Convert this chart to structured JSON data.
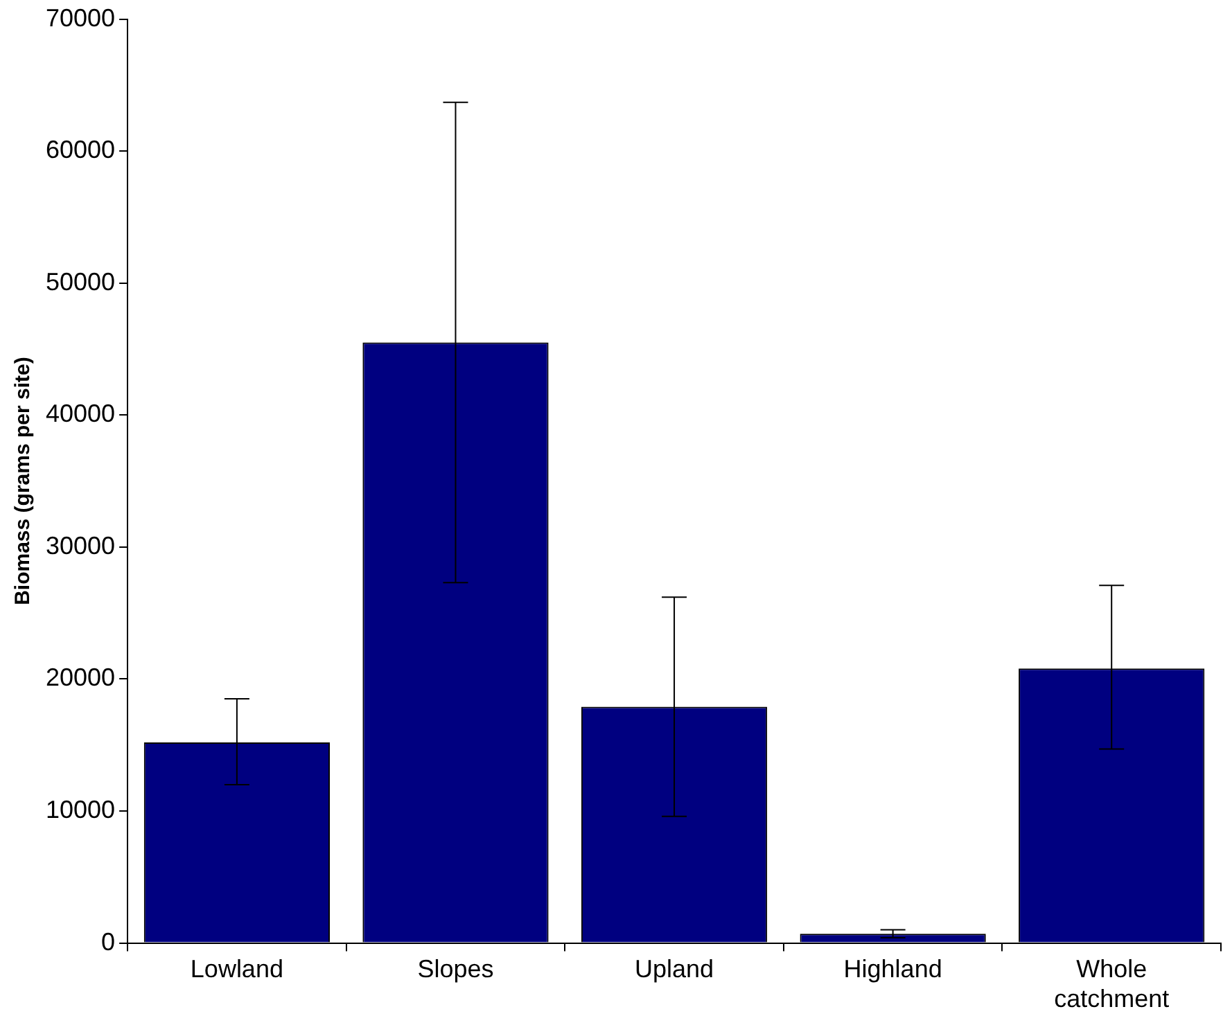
{
  "chart_data": {
    "type": "bar",
    "ylabel": "Biomass (grams per site)",
    "categories": [
      "Lowland",
      "Slopes",
      "Upland",
      "Highland",
      "Whole catchment"
    ],
    "values": [
      15200,
      45500,
      17900,
      700,
      20800
    ],
    "errors": [
      [
        12000,
        18500
      ],
      [
        27300,
        63700
      ],
      [
        9600,
        26200
      ],
      [
        400,
        1000
      ],
      [
        14700,
        27100
      ]
    ],
    "color": "#000080",
    "ylim": [
      0,
      70000
    ],
    "yticks": [
      0,
      10000,
      20000,
      30000,
      40000,
      50000,
      60000,
      70000
    ],
    "grid": false,
    "legend": false
  }
}
